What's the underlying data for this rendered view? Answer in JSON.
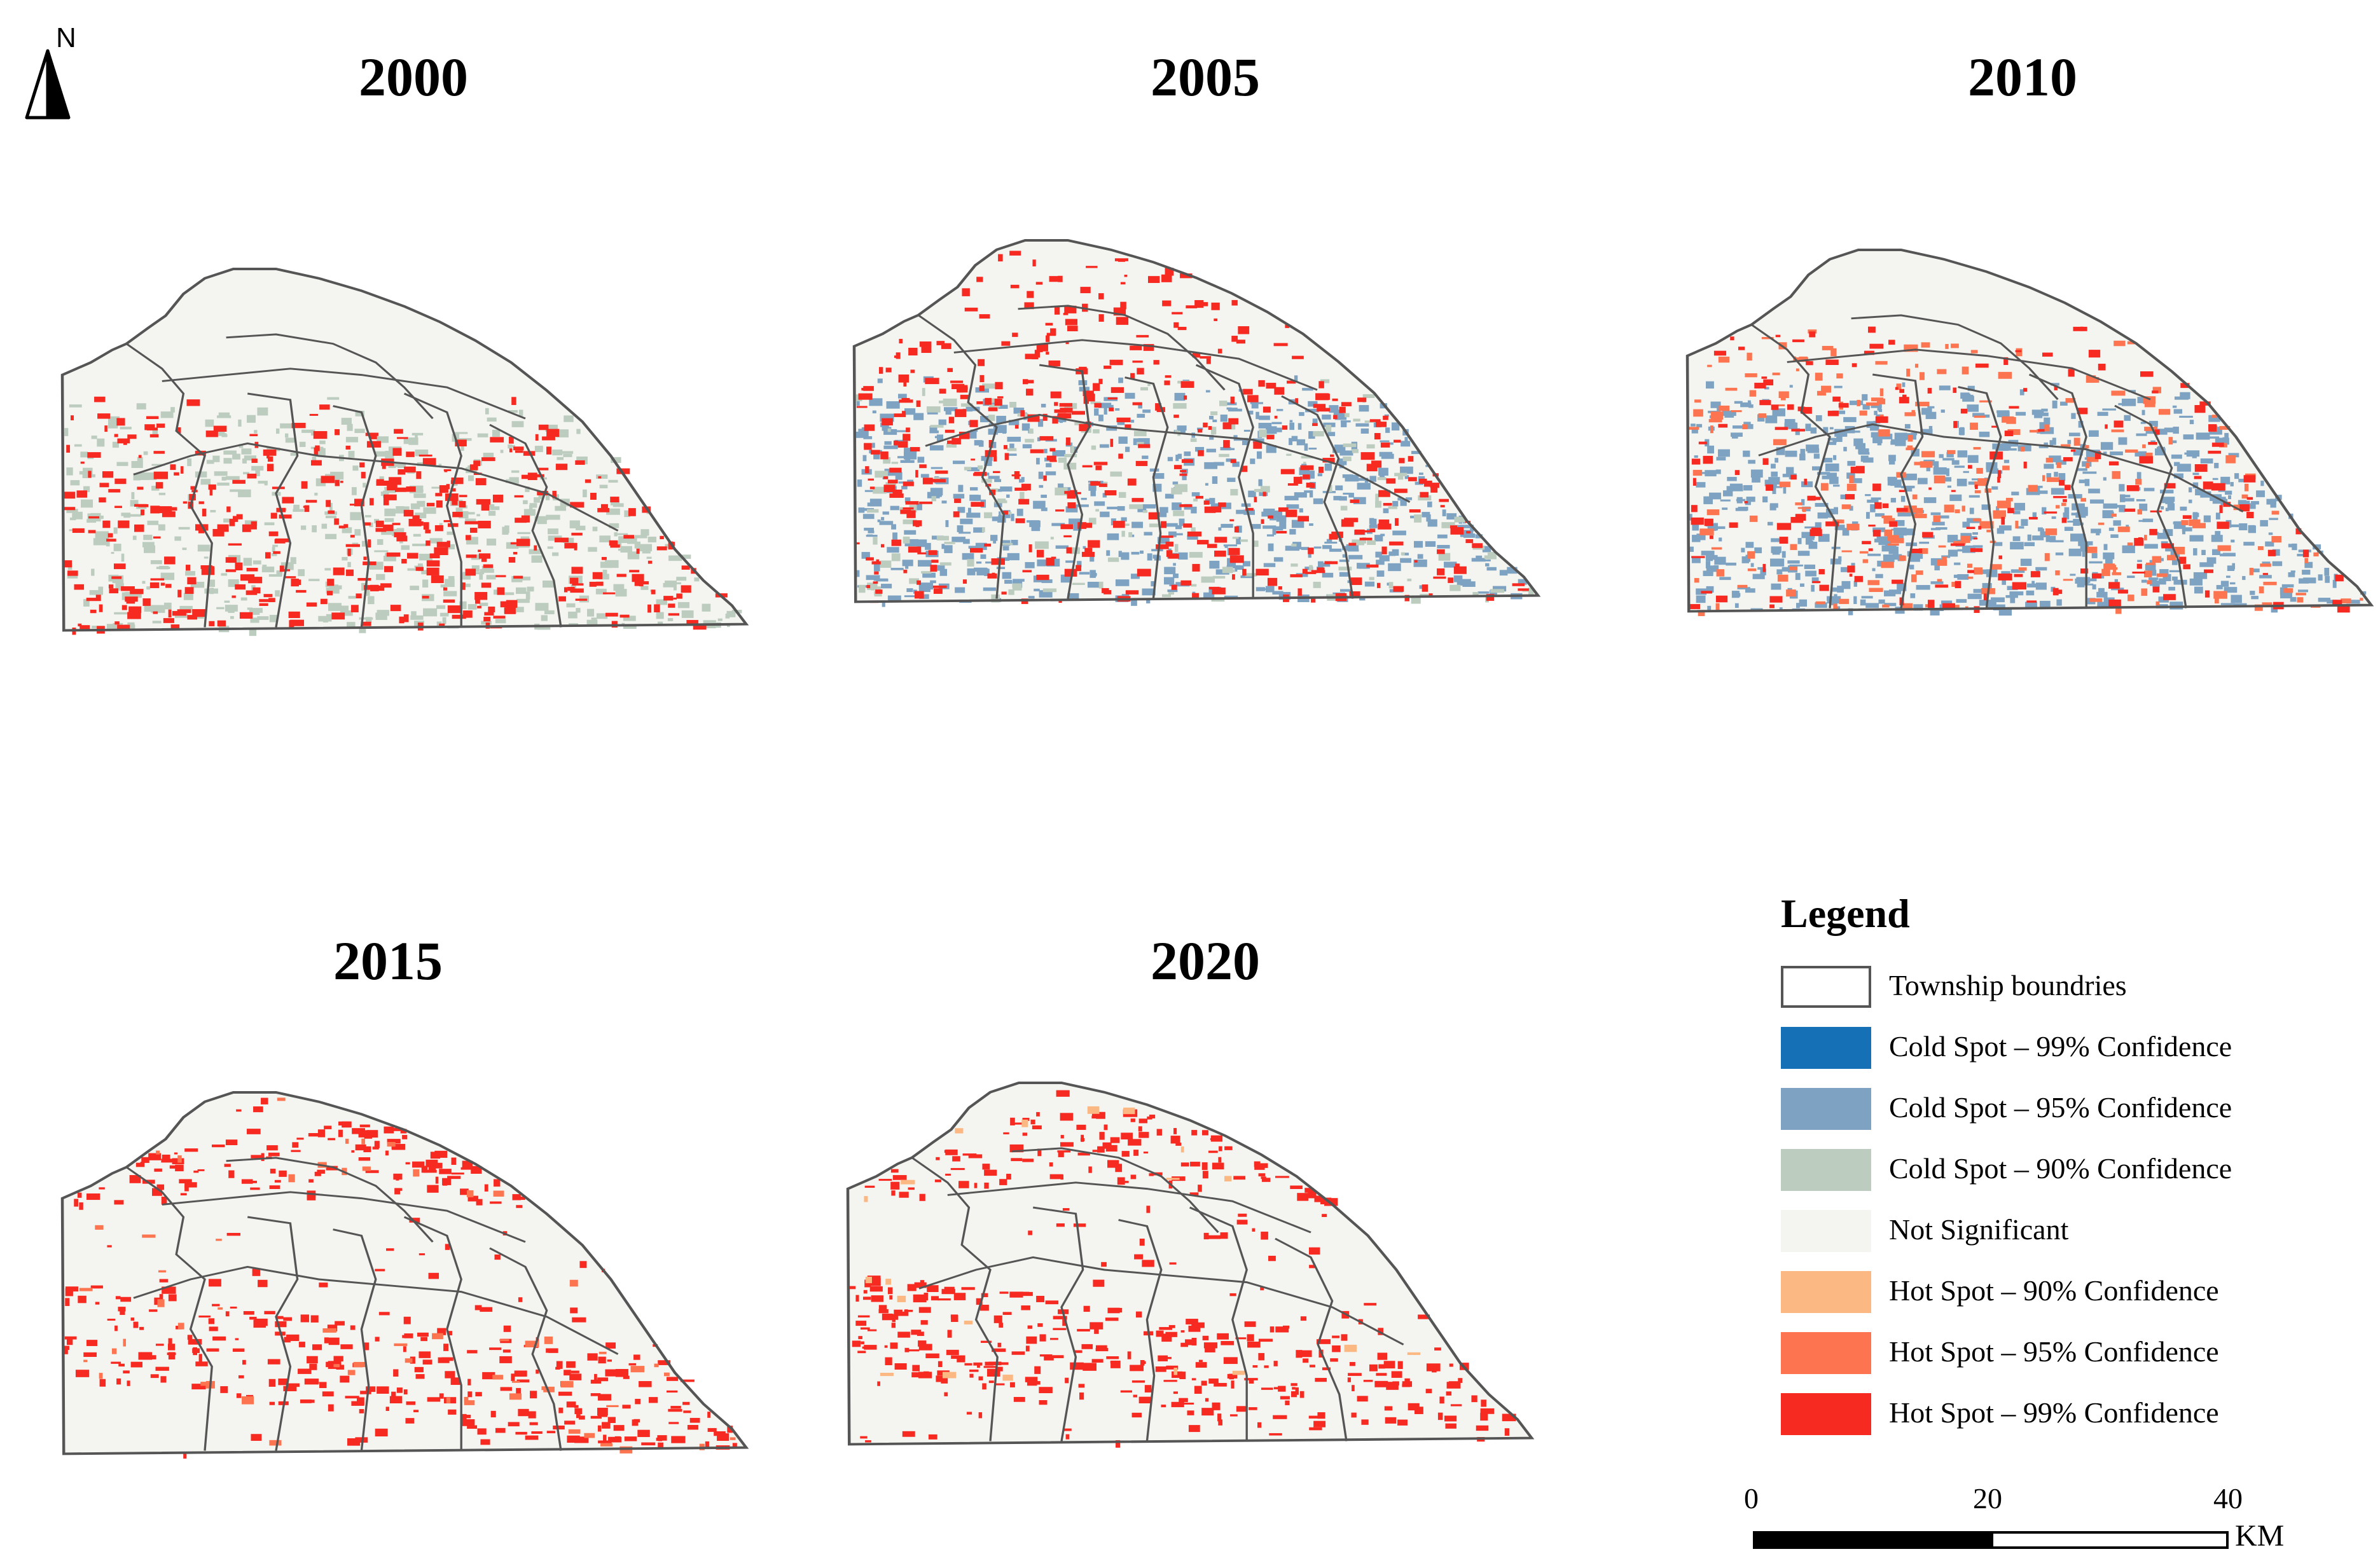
{
  "north_arrow": {
    "label": "N"
  },
  "panels": [
    {
      "year": "2000"
    },
    {
      "year": "2005"
    },
    {
      "year": "2010"
    },
    {
      "year": "2015"
    },
    {
      "year": "2020"
    }
  ],
  "legend": {
    "title": "Legend",
    "items": [
      {
        "label": "Township boundries",
        "color": "#ffffff",
        "outline": "#555555"
      },
      {
        "label": "Cold Spot – 99% Confidence",
        "color": "#1670b5"
      },
      {
        "label": "Cold Spot – 95% Confidence",
        "color": "#7ea3c2"
      },
      {
        "label": "Cold Spot – 90% Confidence",
        "color": "#bcccbf"
      },
      {
        "label": "Not Significant",
        "color": "#f4f5f0"
      },
      {
        "label": "Hot Spot – 90% Confidence",
        "color": "#fcb883"
      },
      {
        "label": "Hot Spot – 95% Confidence",
        "color": "#fc7550"
      },
      {
        "label": "Hot Spot – 99% Confidence",
        "color": "#f72a22"
      }
    ]
  },
  "scale_bar": {
    "ticks": [
      "0",
      "20",
      "40"
    ],
    "unit": "KM"
  }
}
